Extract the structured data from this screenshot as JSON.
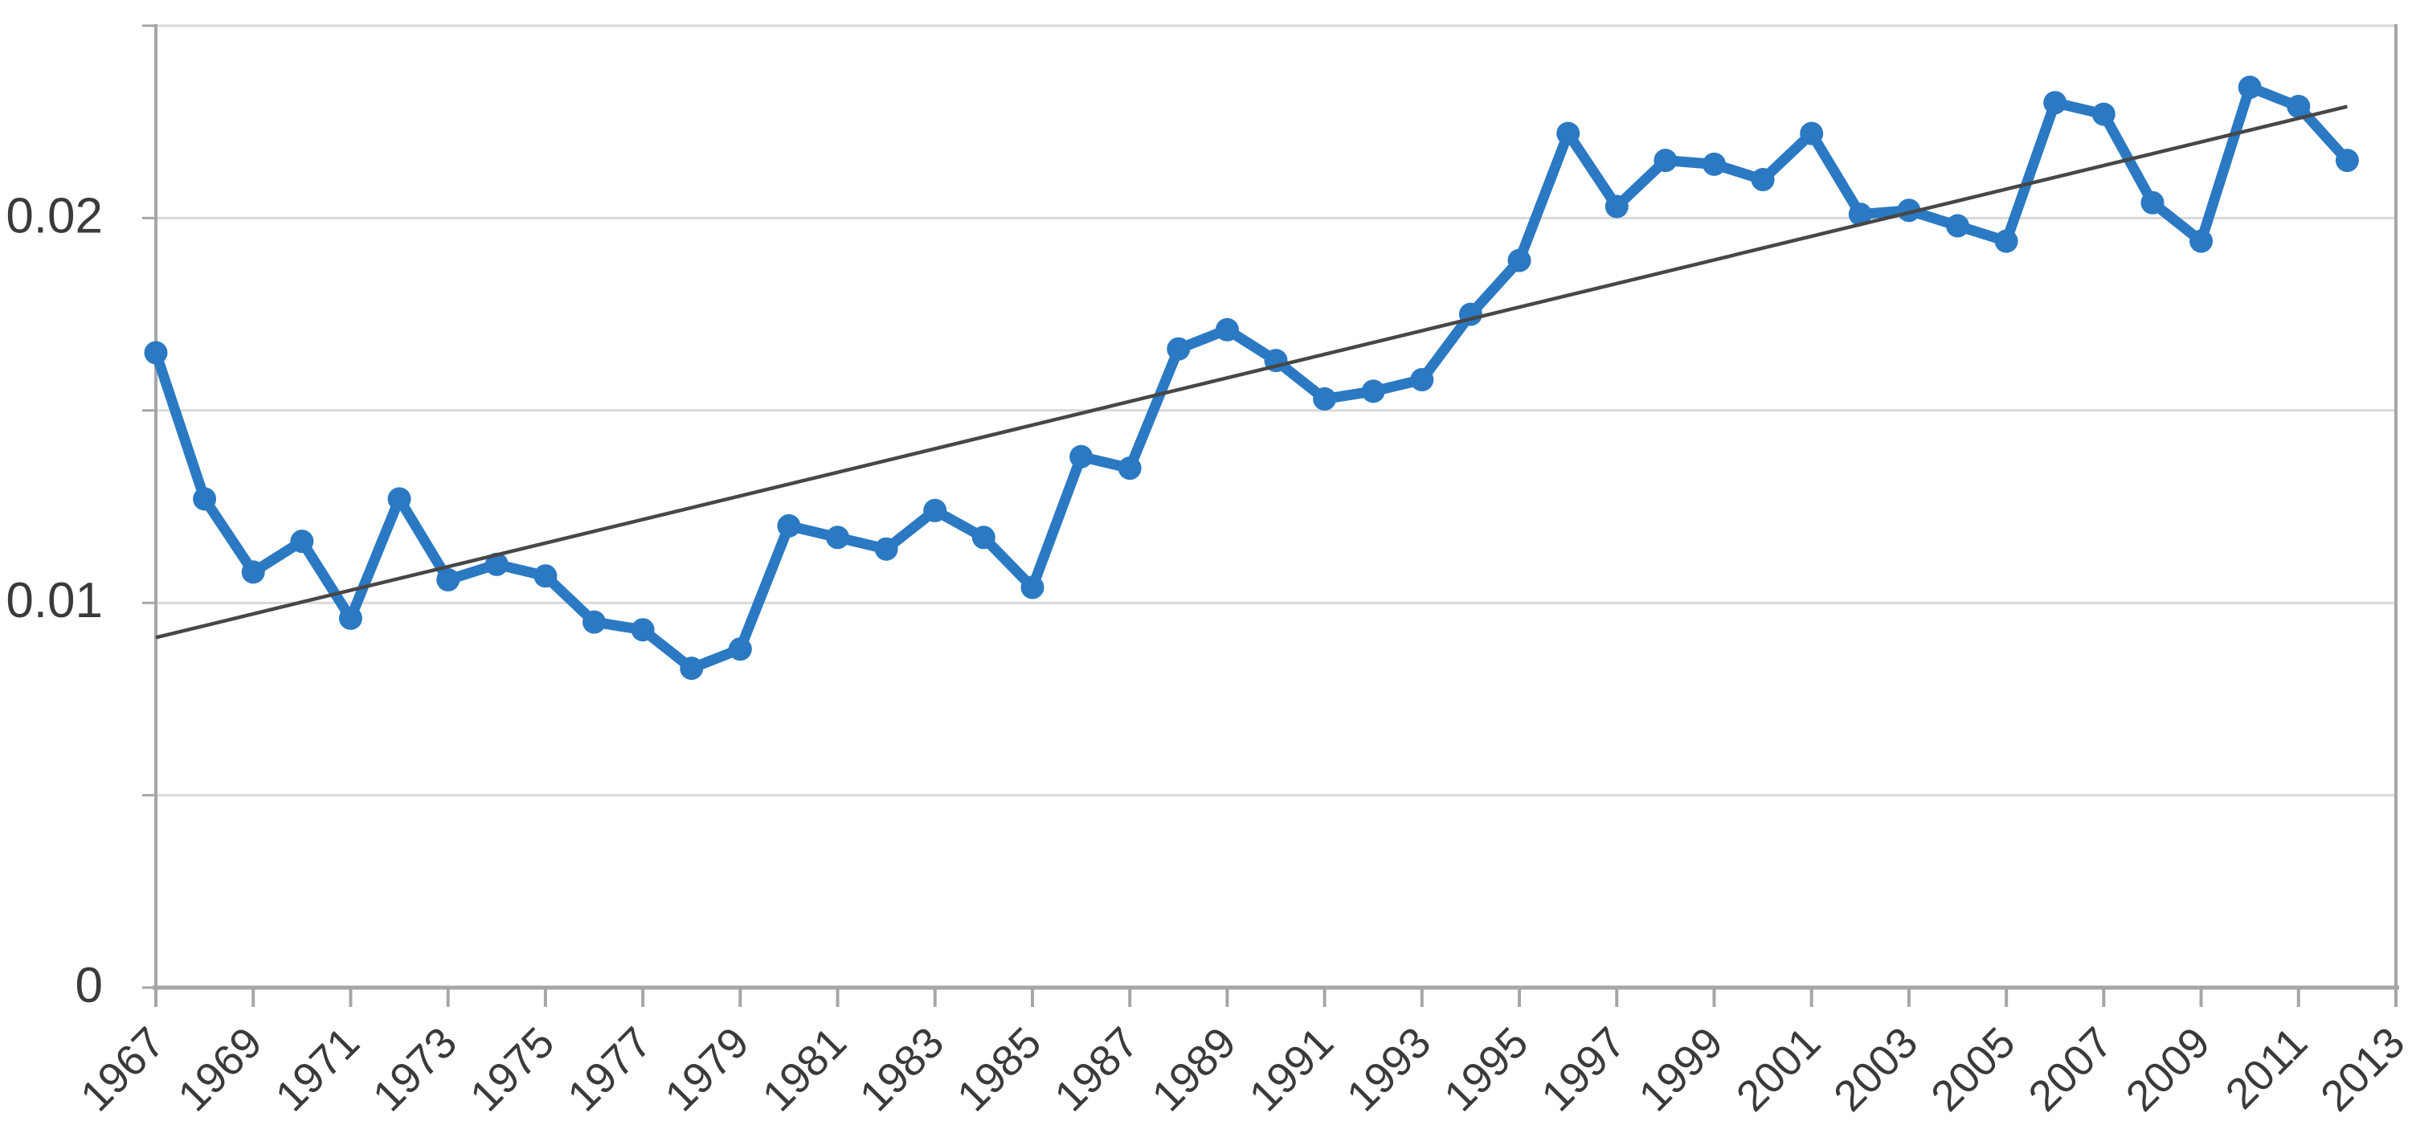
{
  "chart_data": {
    "type": "line",
    "grid": true,
    "legend": "none",
    "x": [
      1967,
      1968,
      1969,
      1970,
      1971,
      1972,
      1973,
      1974,
      1975,
      1976,
      1977,
      1978,
      1979,
      1980,
      1981,
      1982,
      1983,
      1984,
      1985,
      1986,
      1987,
      1988,
      1989,
      1990,
      1991,
      1992,
      1993,
      1994,
      1995,
      1996,
      1997,
      1998,
      1999,
      2000,
      2001,
      2002,
      2003,
      2004,
      2005,
      2006,
      2007,
      2008,
      2009,
      2010,
      2011,
      2012
    ],
    "series": [
      {
        "name": "yearly-value",
        "color": "#2B79C2",
        "marker": "circle",
        "values": [
          0.0165,
          0.0127,
          0.0108,
          0.0116,
          0.0096,
          0.0127,
          0.0106,
          0.011,
          0.0107,
          0.0095,
          0.0093,
          0.0083,
          0.0088,
          0.012,
          0.0117,
          0.0114,
          0.0124,
          0.0117,
          0.0104,
          0.0138,
          0.0135,
          0.0166,
          0.0171,
          0.0163,
          0.0153,
          0.0155,
          0.0158,
          0.0175,
          0.0189,
          0.0222,
          0.0203,
          0.0215,
          0.0214,
          0.021,
          0.0222,
          0.0201,
          0.0202,
          0.0198,
          0.0194,
          0.023,
          0.0227,
          0.0204,
          0.0194,
          0.0234,
          0.0229,
          0.0215
        ]
      }
    ],
    "trendline": {
      "name": "linear-trend",
      "color": "#474747",
      "x_start": 1967,
      "y_start": 0.0091,
      "x_end": 2012,
      "y_end": 0.0229
    },
    "x_axis": {
      "range": [
        1967,
        2013
      ],
      "tick_step_years": 2,
      "label_rotation_deg": -45,
      "tick_labels": [
        "1967",
        "1969",
        "1971",
        "1973",
        "1975",
        "1977",
        "1979",
        "1981",
        "1983",
        "1985",
        "1987",
        "1989",
        "1991",
        "1993",
        "1995",
        "1997",
        "1999",
        "2001",
        "2003",
        "2005",
        "2007",
        "2009",
        "2011",
        "2013"
      ]
    },
    "y_axis": {
      "range": [
        0,
        0.025
      ],
      "gridline_step": 0.005,
      "tick_labels": [
        {
          "value": 0,
          "label": "0"
        },
        {
          "value": 0.01,
          "label": "0.01"
        },
        {
          "value": 0.02,
          "label": "0.02"
        }
      ]
    },
    "colors": {
      "background": "#FFFFFF",
      "gridline": "#D9D9D9",
      "axis": "#A6A6A6",
      "tick_label": "#3A3A3A"
    }
  }
}
